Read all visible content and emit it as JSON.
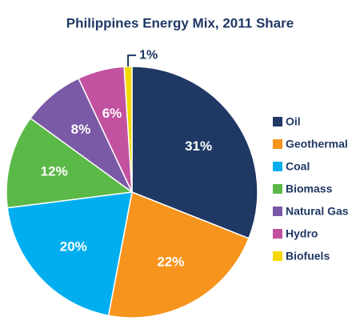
{
  "chart_data": {
    "type": "pie",
    "title": "Philippines Energy Mix, 2011 Share",
    "categories": [
      "Oil",
      "Geothermal",
      "Coal",
      "Biomass",
      "Natural Gas",
      "Hydro",
      "Biofuels"
    ],
    "values": [
      31,
      22,
      20,
      12,
      8,
      6,
      1
    ],
    "value_labels": [
      "31%",
      "22%",
      "20%",
      "12%",
      "8%",
      "6%",
      "1%"
    ],
    "colors": [
      "#1f3864",
      "#f7941d",
      "#00aeef",
      "#5bb947",
      "#7a5aa6",
      "#c2519f",
      "#f5d800"
    ],
    "legend": "right"
  }
}
